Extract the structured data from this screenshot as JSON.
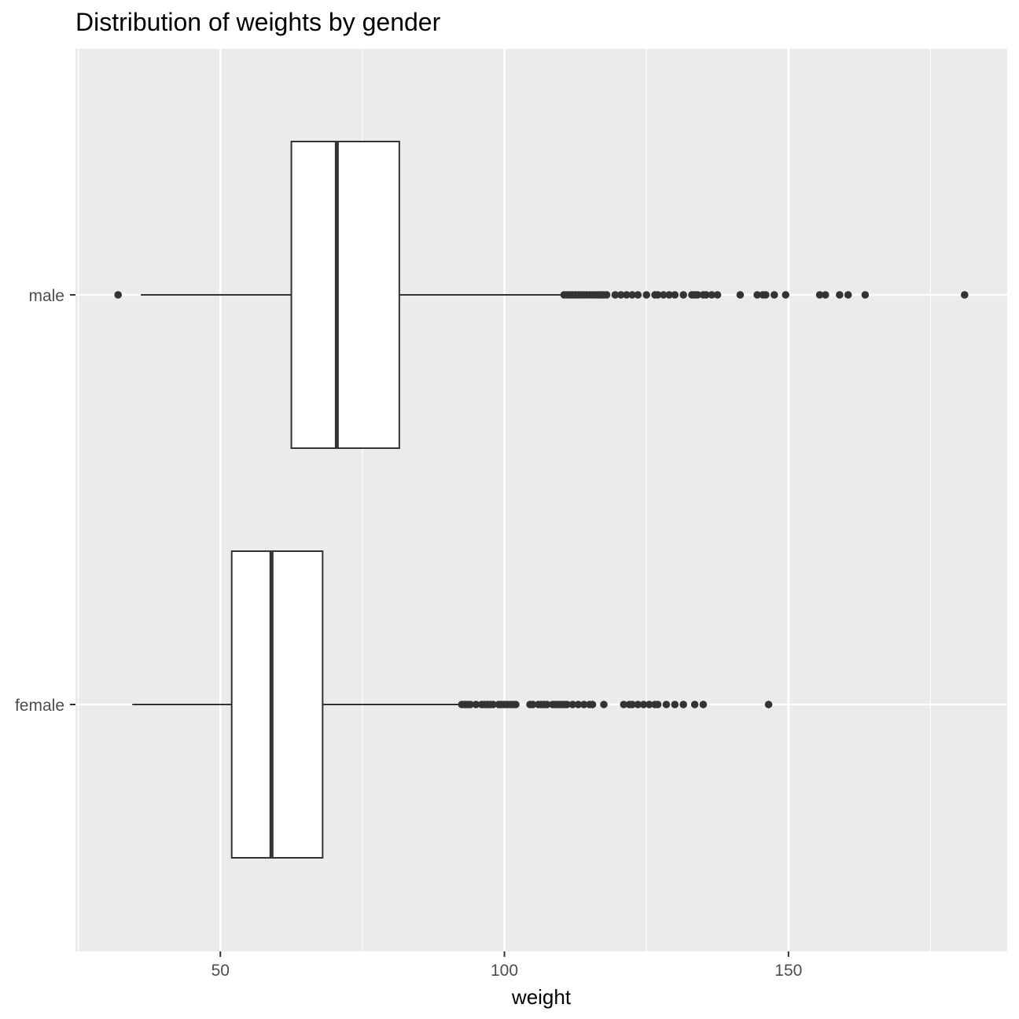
{
  "chart_data": {
    "type": "boxplot",
    "orientation": "horizontal",
    "title": "Distribution of weights by gender",
    "xlabel": "weight",
    "ylabel": "",
    "xlim": [
      24.5,
      188.5
    ],
    "x_ticks": [
      50,
      100,
      150
    ],
    "x_tick_labels": [
      "50",
      "100",
      "150"
    ],
    "categories": [
      "male",
      "female"
    ],
    "grid": true,
    "colors": {
      "panel": "#ebebeb",
      "grid": "#ffffff",
      "box_fill": "#ffffff",
      "line": "#333333",
      "point": "#333333"
    },
    "series": [
      {
        "name": "male",
        "whisker_low": 36,
        "q1": 62.5,
        "median": 70.5,
        "q3": 81.5,
        "whisker_high": 110,
        "outliers": [
          32,
          110.5,
          111,
          111.5,
          112,
          112.5,
          113,
          113.5,
          114,
          114.5,
          115,
          115.5,
          116,
          116.5,
          117,
          117.5,
          118,
          119.5,
          120.5,
          121.5,
          122.5,
          123.5,
          125,
          126.5,
          127,
          128,
          129,
          130,
          131.5,
          133,
          133.5,
          134,
          135,
          135.5,
          136.5,
          137.5,
          141.5,
          144.5,
          145.5,
          146,
          147.5,
          149.5,
          155.5,
          156.5,
          159,
          160.5,
          163.5,
          181
        ]
      },
      {
        "name": "female",
        "whisker_low": 34.5,
        "q1": 52,
        "median": 59,
        "q3": 68,
        "whisker_high": 92,
        "outliers": [
          92.5,
          93,
          93.5,
          94,
          95,
          96,
          96.5,
          97,
          97.5,
          98,
          99,
          99.5,
          100,
          100.5,
          101,
          101.5,
          102,
          104.5,
          105,
          106,
          106.5,
          107,
          107.5,
          108.5,
          109,
          109.5,
          110,
          110.5,
          111,
          112,
          113,
          114,
          115,
          115.5,
          117.5,
          121,
          122,
          122.5,
          123.5,
          124.5,
          125.5,
          126.5,
          127,
          128.5,
          130,
          131.5,
          133.5,
          135,
          146.5
        ]
      }
    ]
  }
}
